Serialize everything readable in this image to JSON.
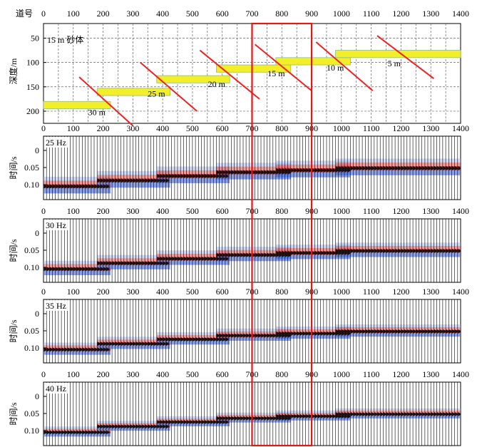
{
  "header": {
    "trace_label": "道号",
    "trace_ticks": [
      "0",
      "100",
      "200",
      "300",
      "400",
      "500",
      "600",
      "700",
      "800",
      "900",
      "1000",
      "1100",
      "1200",
      "1300",
      "1400"
    ]
  },
  "model": {
    "ylabel": "深度/m",
    "title": "15 m 砂体",
    "depth_ticks": [
      "50",
      "100",
      "150",
      "200"
    ],
    "layers": [
      {
        "x": [
          0,
          225
        ],
        "top": 180,
        "thick": 15
      },
      {
        "x": [
          180,
          425
        ],
        "top": 153,
        "thick": 15
      },
      {
        "x": [
          380,
          625
        ],
        "top": 127,
        "thick": 15
      },
      {
        "x": [
          580,
          830
        ],
        "top": 105,
        "thick": 15
      },
      {
        "x": [
          780,
          1030
        ],
        "top": 90,
        "thick": 15
      },
      {
        "x": [
          980,
          1400
        ],
        "top": 75,
        "thick": 15
      }
    ],
    "faults": [
      {
        "x0": 120,
        "d0": 130,
        "x1": 300,
        "d1": 230,
        "label": "30 m",
        "lx": 150,
        "ld": 208
      },
      {
        "x0": 325,
        "d0": 100,
        "x1": 515,
        "d1": 200,
        "label": "25 m",
        "lx": 350,
        "ld": 170
      },
      {
        "x0": 525,
        "d0": 75,
        "x1": 725,
        "d1": 175,
        "label": "20 m",
        "lx": 552,
        "ld": 150
      },
      {
        "x0": 710,
        "d0": 63,
        "x1": 900,
        "d1": 158,
        "label": "15 m",
        "lx": 752,
        "ld": 128
      },
      {
        "x0": 915,
        "d0": 58,
        "x1": 1105,
        "d1": 158,
        "label": "10 m",
        "lx": 950,
        "ld": 117
      },
      {
        "x0": 1120,
        "d0": 45,
        "x1": 1310,
        "d1": 133,
        "label": "5 m",
        "lx": 1155,
        "ld": 108
      }
    ]
  },
  "axis_ticks": [
    "0",
    "100",
    "200",
    "300",
    "400",
    "500",
    "600",
    "700",
    "800",
    "900",
    "1000",
    "1100",
    "1200",
    "1300",
    "1400"
  ],
  "panels": [
    {
      "freq": "25 Hz",
      "ylabel": "时间/s",
      "time_ticks": [
        "0",
        "0.05",
        "0.10"
      ]
    },
    {
      "freq": "30 Hz",
      "ylabel": "时间/s",
      "time_ticks": [
        "0",
        "0.05",
        "0.10"
      ]
    },
    {
      "freq": "35 Hz",
      "ylabel": "时间/s",
      "time_ticks": [
        "0",
        "0.05",
        "0.10"
      ]
    },
    {
      "freq": "40 Hz",
      "ylabel": "时间/s",
      "time_ticks": [
        "0",
        "0.05",
        "0.10"
      ]
    }
  ],
  "highlight": {
    "x_start": 700,
    "x_end": 900
  },
  "colors": {
    "sand": "#f2ee2a",
    "fault": "#ee2222",
    "highlight": "#dd1a1a",
    "peak": "#e84a4a",
    "trough": "#4a6ee0",
    "wiggle": "#000000"
  }
}
